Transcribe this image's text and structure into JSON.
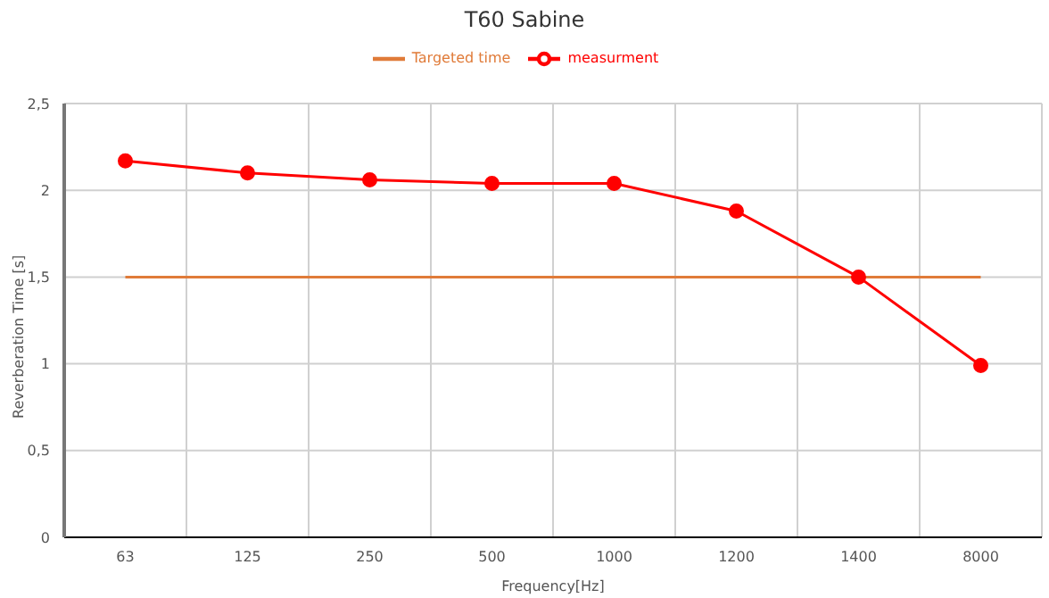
{
  "chart_data": {
    "type": "line",
    "title": "T60 Sabine",
    "xlabel": "Frequency[Hz]",
    "ylabel": "Reverberation Time [s]",
    "categories": [
      "63",
      "125",
      "250",
      "500",
      "1000",
      "1200",
      "1400",
      "8000"
    ],
    "series": [
      {
        "name": "measurment",
        "color": "#ff0000",
        "values": [
          2.17,
          2.1,
          2.06,
          2.04,
          2.04,
          1.88,
          1.5,
          0.99
        ],
        "marker": "circle"
      },
      {
        "name": "Targeted time",
        "color": "#e07b39",
        "values": [
          1.5,
          1.5,
          1.5,
          1.5,
          1.5,
          1.5,
          1.5,
          1.5
        ],
        "marker": "none"
      }
    ],
    "ylim": [
      0,
      2.5
    ],
    "yticks": [
      0,
      {
        "value": 0.5,
        "label": "0,5"
      },
      1,
      {
        "value": 1.5,
        "label": "1,5"
      },
      2,
      {
        "value": 2.5,
        "label": "2,5"
      }
    ],
    "grid": true,
    "legend": "top",
    "line_style": "solid"
  }
}
